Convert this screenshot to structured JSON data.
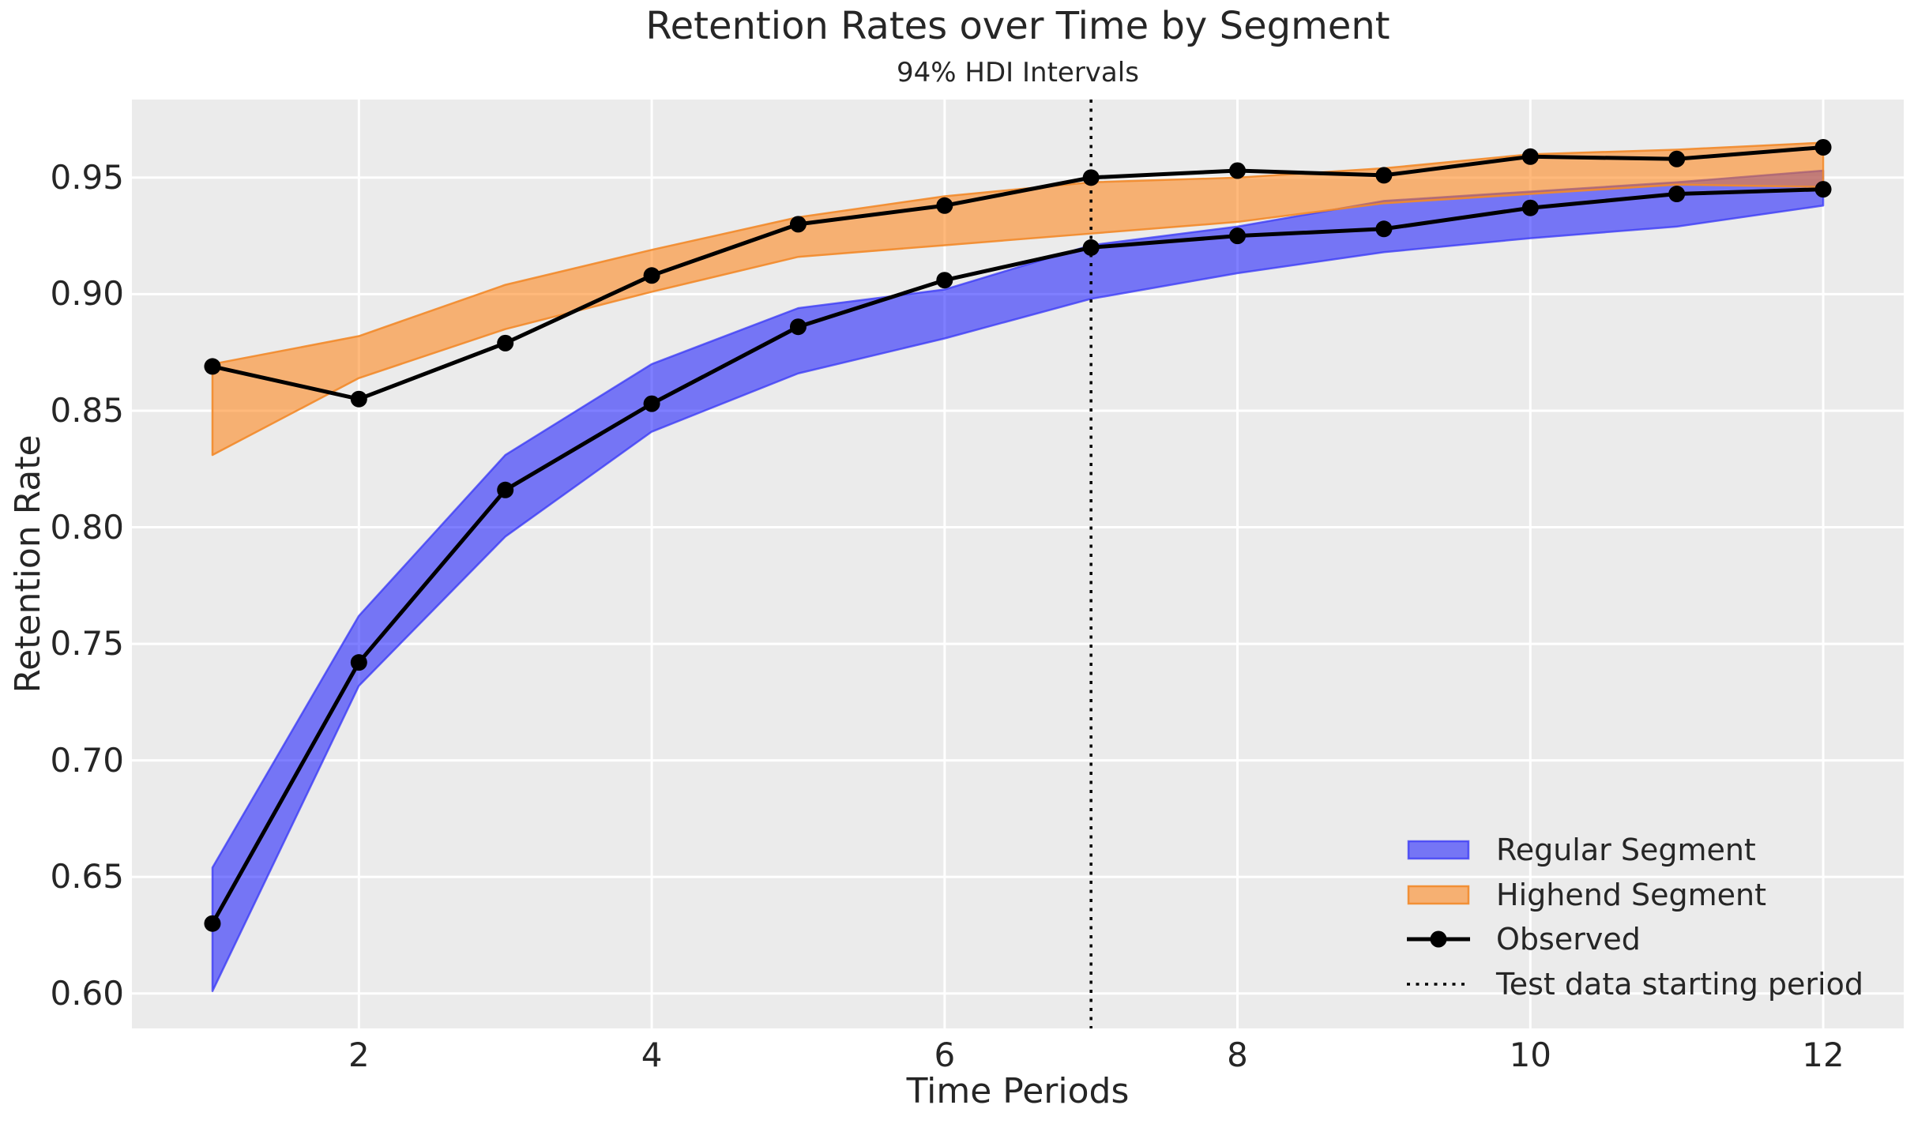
{
  "header": {
    "title": "Retention Rates over Time by Segment",
    "subtitle": "94% HDI Intervals"
  },
  "axes": {
    "x_label": "Time Periods",
    "y_label": "Retention Rate",
    "x_ticks": [
      "2",
      "4",
      "6",
      "8",
      "10",
      "12"
    ],
    "y_ticks": [
      "0.60",
      "0.65",
      "0.70",
      "0.75",
      "0.80",
      "0.85",
      "0.90",
      "0.95"
    ],
    "xlim": [
      0.45,
      12.55
    ],
    "ylim": [
      0.585,
      0.9835
    ]
  },
  "legend": {
    "items": [
      {
        "label": "Regular Segment",
        "swatch": "patch",
        "color_key": "regular"
      },
      {
        "label": "Highend Segment",
        "swatch": "patch",
        "color_key": "highend"
      },
      {
        "label": "Observed",
        "swatch": "line-marker",
        "color_key": "observed"
      },
      {
        "label": "Test data starting period",
        "swatch": "dotted-line",
        "color_key": "observed"
      }
    ]
  },
  "colors": {
    "plot_background": "#ebebeb",
    "gridline": "#ffffff",
    "text": "#262626",
    "observed": "#000000",
    "regular_fill": "rgba(0,0,255,0.5)",
    "regular_edge": "rgba(55,55,245,0.75)",
    "highend_fill": "rgba(255,127,14,0.55)",
    "highend_edge": "rgba(242,138,42,0.9)",
    "test_line": "#000000"
  },
  "chart_data": {
    "type": "line",
    "title": "Retention Rates over Time by Segment",
    "subtitle": "94% HDI Intervals",
    "xlabel": "Time Periods",
    "ylabel": "Retention Rate",
    "grid": true,
    "legend_position": "lower right",
    "hdi_level": "94%",
    "x": [
      1,
      2,
      3,
      4,
      5,
      6,
      7,
      8,
      9,
      10,
      11,
      12
    ],
    "series": [
      {
        "name": "Observed Regular",
        "values": [
          0.63,
          0.742,
          0.816,
          0.853,
          0.886,
          0.906,
          0.92,
          0.925,
          0.928,
          0.937,
          0.943,
          0.945
        ]
      },
      {
        "name": "Observed Highend",
        "values": [
          0.869,
          0.855,
          0.879,
          0.908,
          0.93,
          0.938,
          0.95,
          0.953,
          0.951,
          0.959,
          0.958,
          0.963
        ]
      }
    ],
    "bands": [
      {
        "name": "Regular Segment 94% HDI",
        "color_key": "regular",
        "lo": [
          0.601,
          0.732,
          0.796,
          0.841,
          0.866,
          0.881,
          0.898,
          0.909,
          0.918,
          0.924,
          0.929,
          0.938
        ],
        "hi": [
          0.654,
          0.762,
          0.831,
          0.87,
          0.894,
          0.902,
          0.921,
          0.929,
          0.94,
          0.944,
          0.948,
          0.953
        ]
      },
      {
        "name": "Highend Segment 94% HDI",
        "color_key": "highend",
        "lo": [
          0.831,
          0.864,
          0.885,
          0.901,
          0.916,
          0.921,
          0.926,
          0.931,
          0.939,
          0.943,
          0.947,
          0.946
        ],
        "hi": [
          0.87,
          0.882,
          0.904,
          0.919,
          0.933,
          0.942,
          0.948,
          0.95,
          0.954,
          0.96,
          0.962,
          0.965
        ]
      }
    ],
    "annotations": {
      "test_period_start": 7
    },
    "xlim": [
      0.45,
      12.55
    ],
    "ylim": [
      0.585,
      0.9835
    ]
  }
}
